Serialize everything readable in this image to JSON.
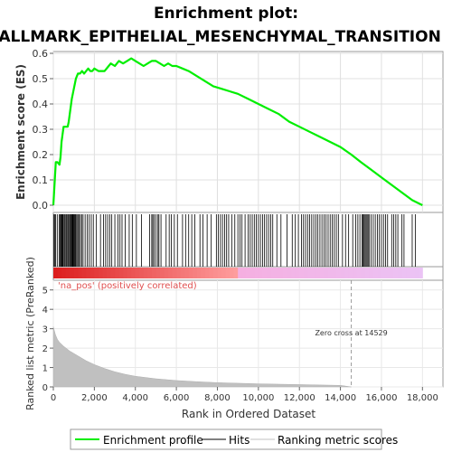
{
  "chart_data": {
    "type": "line",
    "title_line1": "Enrichment plot:",
    "title_line2": "HALLMARK_EPITHELIAL_MESENCHYMAL_TRANSITION",
    "ylabel_top": "Enrichment score (ES)",
    "ylabel_bottom": "Ranked list metric (PreRanked)",
    "xlabel": "Rank in Ordered Dataset",
    "xlim": [
      0,
      19000
    ],
    "es_ylim": [
      0,
      0.6
    ],
    "metric_ylim": [
      0,
      5.5
    ],
    "x_ticks": [
      0,
      2000,
      4000,
      6000,
      8000,
      10000,
      12000,
      14000,
      16000,
      18000
    ],
    "x_tick_labels": [
      "0",
      "2,000",
      "4,000",
      "6,000",
      "8,000",
      "10,000",
      "12,000",
      "14,000",
      "16,000",
      "18,000"
    ],
    "es_ticks": [
      0.0,
      0.1,
      0.2,
      0.3,
      0.4,
      0.5,
      0.6
    ],
    "es_tick_labels": [
      "0.0",
      "0.1",
      "0.2",
      "0.3",
      "0.4",
      "0.5",
      "0.6"
    ],
    "metric_ticks": [
      0,
      1,
      2,
      3,
      4,
      5
    ],
    "metric_tick_labels": [
      "0",
      "1",
      "2",
      "3",
      "4",
      "5"
    ],
    "series": [
      {
        "name": "Enrichment profile",
        "color": "#00ee00",
        "x": [
          0,
          50,
          120,
          200,
          300,
          350,
          400,
          450,
          500,
          600,
          700,
          750,
          800,
          850,
          900,
          950,
          1000,
          1050,
          1100,
          1150,
          1200,
          1300,
          1400,
          1500,
          1600,
          1700,
          1800,
          1900,
          2000,
          2200,
          2400,
          2500,
          2700,
          2800,
          3000,
          3100,
          3200,
          3400,
          3600,
          3800,
          4000,
          4200,
          4400,
          4600,
          4800,
          5000,
          5200,
          5400,
          5600,
          5800,
          6000,
          6300,
          6600,
          7000,
          7400,
          7800,
          8200,
          8600,
          9000,
          9500,
          10000,
          10500,
          11000,
          11500,
          12000,
          12500,
          13000,
          13500,
          14000,
          14529,
          15000,
          15500,
          16000,
          16500,
          17000,
          17500,
          18000
        ],
        "y": [
          0.0,
          0.07,
          0.17,
          0.17,
          0.16,
          0.19,
          0.25,
          0.28,
          0.31,
          0.31,
          0.31,
          0.33,
          0.36,
          0.39,
          0.42,
          0.44,
          0.46,
          0.48,
          0.5,
          0.51,
          0.52,
          0.52,
          0.53,
          0.52,
          0.53,
          0.54,
          0.53,
          0.53,
          0.54,
          0.53,
          0.53,
          0.53,
          0.55,
          0.56,
          0.55,
          0.56,
          0.57,
          0.56,
          0.57,
          0.58,
          0.57,
          0.56,
          0.55,
          0.56,
          0.57,
          0.57,
          0.56,
          0.55,
          0.56,
          0.55,
          0.55,
          0.54,
          0.53,
          0.51,
          0.49,
          0.47,
          0.46,
          0.45,
          0.44,
          0.42,
          0.4,
          0.38,
          0.36,
          0.33,
          0.31,
          0.29,
          0.27,
          0.25,
          0.23,
          0.2,
          0.17,
          0.14,
          0.11,
          0.08,
          0.05,
          0.02,
          0.0
        ]
      },
      {
        "name": "Hits",
        "color": "#000000"
      },
      {
        "name": "Ranking metric scores",
        "color": "#c0c0c0"
      }
    ],
    "metric_curve": {
      "x": [
        0,
        50,
        100,
        200,
        300,
        500,
        800,
        1200,
        1600,
        2000,
        2500,
        3000,
        3500,
        4000,
        5000,
        6000,
        7000,
        8000,
        9000,
        10000,
        11000,
        12000,
        13000,
        14000,
        14529
      ],
      "y": [
        3.1,
        2.9,
        2.7,
        2.45,
        2.3,
        2.1,
        1.85,
        1.6,
        1.35,
        1.15,
        0.95,
        0.78,
        0.65,
        0.55,
        0.42,
        0.33,
        0.27,
        0.22,
        0.19,
        0.16,
        0.14,
        0.12,
        0.1,
        0.08,
        0.0
      ]
    },
    "zero_cross_label": "Zero cross at 14529",
    "zero_cross_x": 14529,
    "na_pos_label": "'na_pos' (positively correlated)",
    "hits": [
      20,
      60,
      110,
      190,
      280,
      330,
      370,
      410,
      440,
      470,
      520,
      560,
      610,
      650,
      700,
      740,
      790,
      830,
      870,
      900,
      930,
      960,
      990,
      1020,
      1060,
      1100,
      1150,
      1200,
      1260,
      1320,
      1380,
      1450,
      1550,
      1650,
      1750,
      1850,
      1950,
      2100,
      2300,
      2450,
      2550,
      2650,
      2750,
      2850,
      3000,
      3150,
      3250,
      3350,
      3500,
      3700,
      3850,
      4050,
      4300,
      4700,
      4800,
      4850,
      4920,
      5000,
      5100,
      5150,
      5250,
      5500,
      5650,
      5750,
      5900,
      6050,
      6300,
      6450,
      6600,
      6750,
      6900,
      7150,
      7300,
      7500,
      7700,
      7950,
      8050,
      8150,
      8250,
      8350,
      8450,
      8550,
      8700,
      8850,
      9000,
      9100,
      9200,
      9350,
      9500,
      9600,
      9700,
      9800,
      9900,
      10000,
      10100,
      10200,
      10300,
      10400,
      10500,
      10600,
      10700,
      10900,
      11100,
      11400,
      11650,
      11800,
      11950,
      12100,
      12200,
      12300,
      12400,
      12500,
      12600,
      12700,
      12800,
      12900,
      13000,
      13100,
      13200,
      13300,
      13400,
      13500,
      13600,
      13700,
      13800,
      13900,
      14100,
      14250,
      14400,
      14600,
      14750,
      14850,
      14950,
      15050,
      15100,
      15150,
      15200,
      15250,
      15300,
      15350,
      15400,
      15500,
      15600,
      15700,
      15800,
      15900,
      16000,
      16100,
      16200,
      16300,
      16500,
      16600,
      16700,
      16800,
      17000,
      17100,
      17500,
      17650
    ],
    "legend_placement": "bottom"
  }
}
